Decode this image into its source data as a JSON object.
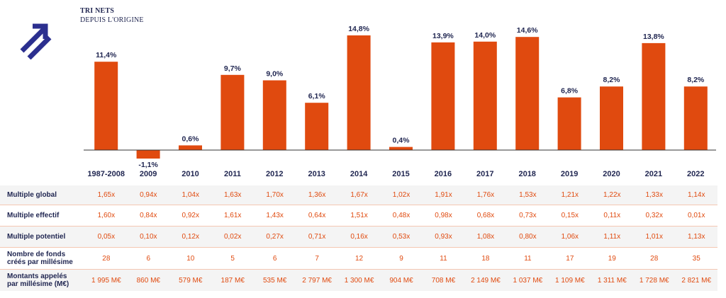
{
  "header": {
    "title": "TRI NETS",
    "subtitle": "DEPUIS L'ORIGINE"
  },
  "colors": {
    "bar": "#e04a0f",
    "value_label": "#1f2550",
    "axis_label": "#1f2550",
    "row_value": "#e04a0f",
    "logo": "#2b2f8f"
  },
  "logo": {
    "icon": "double-arrow-up-right-icon"
  },
  "chart_data": {
    "type": "bar",
    "title": "TRI NETS",
    "subtitle": "DEPUIS L'ORIGINE",
    "categories": [
      "1987-2008",
      "2009",
      "2010",
      "2011",
      "2012",
      "2013",
      "2014",
      "2015",
      "2016",
      "2017",
      "2018",
      "2019",
      "2020",
      "2021",
      "2022"
    ],
    "values": [
      11.4,
      -1.1,
      0.6,
      9.7,
      9.0,
      6.1,
      14.8,
      0.4,
      13.9,
      14.0,
      14.6,
      6.8,
      8.2,
      13.8,
      8.2
    ],
    "value_labels": [
      "11,4%",
      "-1,1%",
      "0,6%",
      "9,7%",
      "9,0%",
      "6,1%",
      "14,8%",
      "0,4%",
      "13,9%",
      "14,0%",
      "14,6%",
      "6,8%",
      "8,2%",
      "13,8%",
      "8,2%"
    ],
    "ylim": [
      -1.1,
      14.8
    ],
    "xlabel": "",
    "ylabel": "",
    "grid": false,
    "legend": "none"
  },
  "table": {
    "rows": [
      {
        "label": "Multiple global",
        "values": [
          "1,65x",
          "0,94x",
          "1,04x",
          "1,63x",
          "1,70x",
          "1,36x",
          "1,67x",
          "1,02x",
          "1,91x",
          "1,76x",
          "1,53x",
          "1,21x",
          "1,22x",
          "1,33x",
          "1,14x"
        ]
      },
      {
        "label": "Multiple effectif",
        "values": [
          "1,60x",
          "0,84x",
          "0,92x",
          "1,61x",
          "1,43x",
          "0,64x",
          "1,51x",
          "0,48x",
          "0,98x",
          "0,68x",
          "0,73x",
          "0,15x",
          "0,11x",
          "0,32x",
          "0,01x"
        ]
      },
      {
        "label": "Multiple potentiel",
        "values": [
          "0,05x",
          "0,10x",
          "0,12x",
          "0,02x",
          "0,27x",
          "0,71x",
          "0,16x",
          "0,53x",
          "0,93x",
          "1,08x",
          "0,80x",
          "1,06x",
          "1,11x",
          "1,01x",
          "1,13x"
        ]
      },
      {
        "label_line1": "Nombre de fonds",
        "label_line2": "créés par millésime",
        "values": [
          "28",
          "6",
          "10",
          "5",
          "6",
          "7",
          "12",
          "9",
          "11",
          "18",
          "11",
          "17",
          "19",
          "28",
          "35"
        ]
      },
      {
        "label_line1": "Montants appelés",
        "label_line2": "par millésime (M€)",
        "values": [
          "1 995 M€",
          "860 M€",
          "579 M€",
          "187 M€",
          "535 M€",
          "2 797 M€",
          "1 300 M€",
          "904 M€",
          "708 M€",
          "2 149 M€",
          "1 037 M€",
          "1 109 M€",
          "1 311 M€",
          "1 728 M€",
          "2 821 M€"
        ]
      }
    ]
  }
}
